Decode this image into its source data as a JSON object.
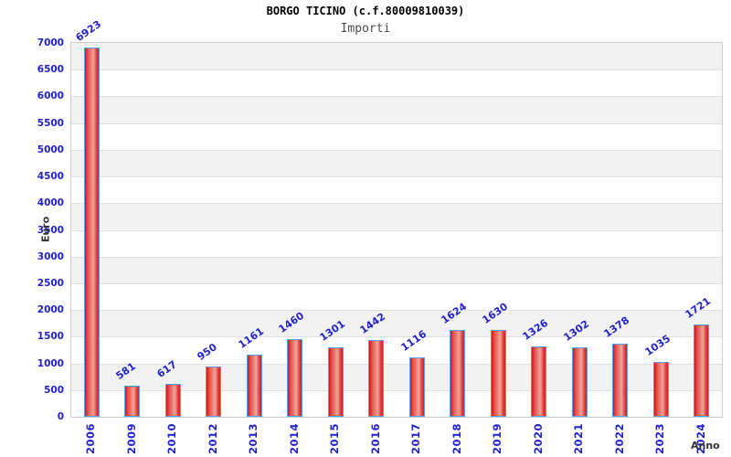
{
  "chart_data": {
    "type": "bar",
    "title": "BORGO TICINO (c.f.80009810039)",
    "subtitle": "Importi",
    "xlabel": "Anno",
    "ylabel": "Euro",
    "categories": [
      "2006",
      "2009",
      "2010",
      "2012",
      "2013",
      "2014",
      "2015",
      "2016",
      "2017",
      "2018",
      "2019",
      "2020",
      "2021",
      "2022",
      "2023",
      "2024"
    ],
    "values": [
      6923,
      581,
      617,
      950,
      1161,
      1460,
      1301,
      1442,
      1116,
      1624,
      1630,
      1326,
      1302,
      1378,
      1035,
      1721
    ],
    "ylim": [
      0,
      7000
    ],
    "ytick_step": 500,
    "grid": "horizontal-bands-alternating",
    "legend": "none",
    "bar_value_labels_rotation_deg": -35,
    "x_tick_rotation_deg": -90,
    "colors": {
      "axis_label_blue": "#2222cc",
      "bar_border_blue": "#58a0f0",
      "bar_red_edge": "#d61414",
      "bar_red_mid": "#e4544d",
      "bar_red_light": "#f2a29c",
      "bar_red_mid2": "#e03a34",
      "bar_red_edge2": "#da1f1f",
      "band_gray": "#f2f2f2",
      "band_white": "#ffffff",
      "grid_line": "#e0e0e0",
      "plot_border": "#cccccc",
      "axis_title_color": "#333333",
      "title_color": "#000000",
      "subtitle_color": "#4d4d4d"
    }
  }
}
